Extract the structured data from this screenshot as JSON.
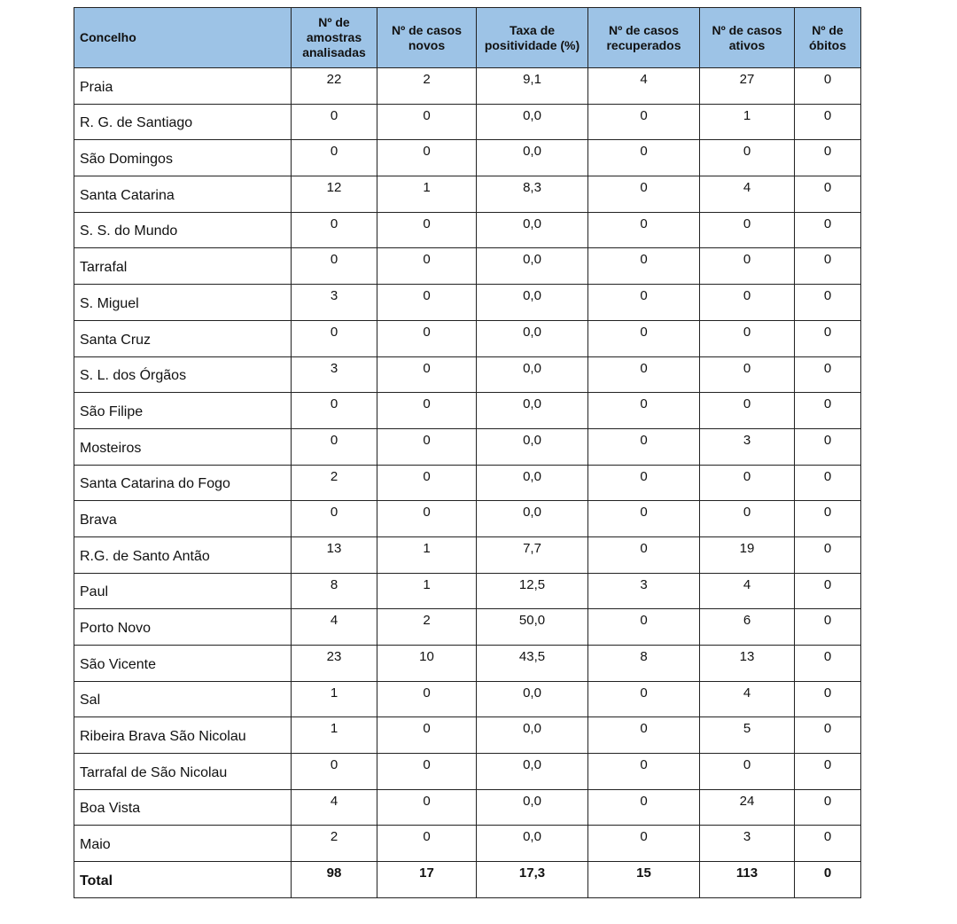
{
  "headers": [
    "Concelho",
    "Nº de amostras analisadas",
    "Nº de casos novos",
    "Taxa de positividade (%)",
    "Nº de casos recuperados",
    "Nº de casos ativos",
    "Nº de óbitos"
  ],
  "rows": [
    [
      "Praia",
      "22",
      "2",
      "9,1",
      "4",
      "27",
      "0"
    ],
    [
      "R. G. de Santiago",
      "0",
      "0",
      "0,0",
      "0",
      "1",
      "0"
    ],
    [
      "São Domingos",
      "0",
      "0",
      "0,0",
      "0",
      "0",
      "0"
    ],
    [
      "Santa Catarina",
      "12",
      "1",
      "8,3",
      "0",
      "4",
      "0"
    ],
    [
      "S. S. do Mundo",
      "0",
      "0",
      "0,0",
      "0",
      "0",
      "0"
    ],
    [
      "Tarrafal",
      "0",
      "0",
      "0,0",
      "0",
      "0",
      "0"
    ],
    [
      "S. Miguel",
      "3",
      "0",
      "0,0",
      "0",
      "0",
      "0"
    ],
    [
      "Santa Cruz",
      "0",
      "0",
      "0,0",
      "0",
      "0",
      "0"
    ],
    [
      "S. L. dos Órgãos",
      "3",
      "0",
      "0,0",
      "0",
      "0",
      "0"
    ],
    [
      "São Filipe",
      "0",
      "0",
      "0,0",
      "0",
      "0",
      "0"
    ],
    [
      "Mosteiros",
      "0",
      "0",
      "0,0",
      "0",
      "3",
      "0"
    ],
    [
      "Santa Catarina do Fogo",
      "2",
      "0",
      "0,0",
      "0",
      "0",
      "0"
    ],
    [
      "Brava",
      "0",
      "0",
      "0,0",
      "0",
      "0",
      "0"
    ],
    [
      "R.G. de Santo Antão",
      "13",
      "1",
      "7,7",
      "0",
      "19",
      "0"
    ],
    [
      "Paul",
      "8",
      "1",
      "12,5",
      "3",
      "4",
      "0"
    ],
    [
      "Porto Novo",
      "4",
      "2",
      "50,0",
      "0",
      "6",
      "0"
    ],
    [
      "São Vicente",
      "23",
      "10",
      "43,5",
      "8",
      "13",
      "0"
    ],
    [
      "Sal",
      "1",
      "0",
      "0,0",
      "0",
      "4",
      "0"
    ],
    [
      "Ribeira Brava São Nicolau",
      "1",
      "0",
      "0,0",
      "0",
      "5",
      "0"
    ],
    [
      "Tarrafal de São Nicolau",
      "0",
      "0",
      "0,0",
      "0",
      "0",
      "0"
    ],
    [
      "Boa Vista",
      "4",
      "0",
      "0,0",
      "0",
      "24",
      "0"
    ],
    [
      "Maio",
      "2",
      "0",
      "0,0",
      "0",
      "3",
      "0"
    ]
  ],
  "total": [
    "Total",
    "98",
    "17",
    "17,3",
    "15",
    "113",
    "0"
  ],
  "colors": {
    "header_bg": "#9dc3e6"
  }
}
